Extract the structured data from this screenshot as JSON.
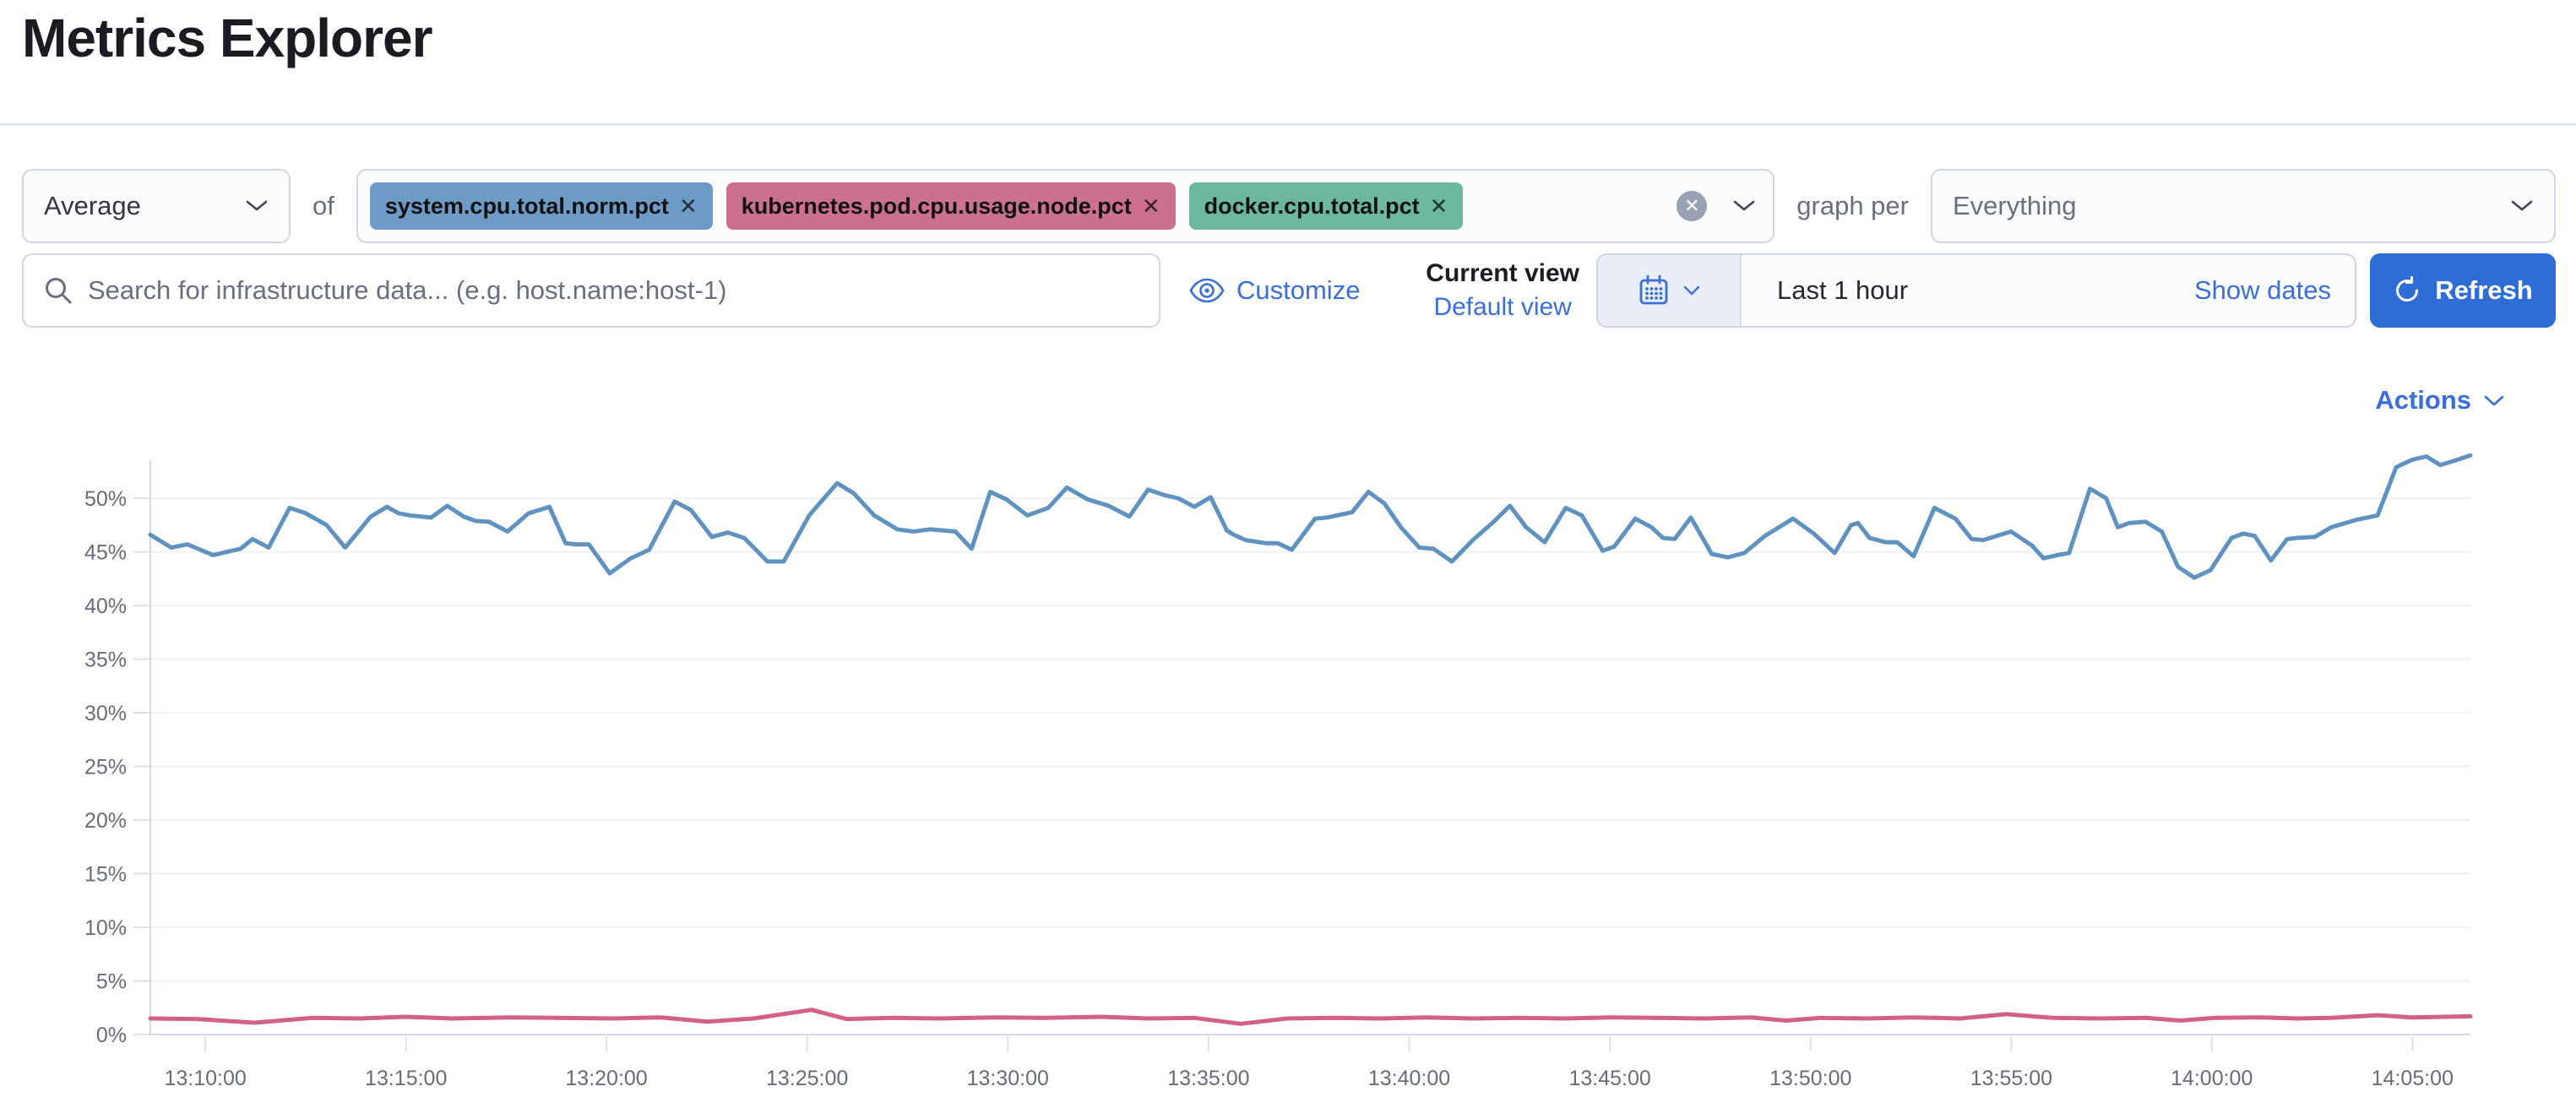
{
  "page": {
    "title": "Metrics Explorer"
  },
  "toolbar": {
    "aggregation": {
      "value": "Average"
    },
    "of_label": "of",
    "metrics": [
      {
        "label": "system.cpu.total.norm.pct",
        "color": "#6d9ac6",
        "close_glyph": "✕"
      },
      {
        "label": "kubernetes.pod.cpu.usage.node.pct",
        "color": "#cc7090",
        "close_glyph": "✕"
      },
      {
        "label": "docker.cpu.total.pct",
        "color": "#6bb89e",
        "close_glyph": "✕"
      }
    ],
    "clear_glyph": "✕",
    "graph_per_label": "graph per",
    "group_by": {
      "value": "Everything"
    }
  },
  "search": {
    "placeholder": "Search for infrastructure data... (e.g. host.name:host-1)"
  },
  "view_controls": {
    "customize_label": "Customize",
    "current_view_label": "Current view",
    "default_view_label": "Default view"
  },
  "time_picker": {
    "value": "Last 1 hour",
    "show_dates_label": "Show dates",
    "refresh_label": "Refresh"
  },
  "actions_label": "Actions",
  "colors": {
    "link_blue": "#3b6fd8",
    "button_blue": "#2e6cd6",
    "border_gray": "#ced6e3",
    "text_dark": "#343741",
    "text_gray": "#69707d",
    "gridline": "#eef1f5",
    "axis_line": "#d3dae6",
    "series_blue": "#6092C0",
    "series_pink": "#D36086"
  },
  "chart_data": {
    "type": "line",
    "title": "",
    "xlabel": "",
    "ylabel": "",
    "ylim": [
      0,
      55
    ],
    "grid": true,
    "legend": "none",
    "y_ticks": [
      0,
      5,
      10,
      15,
      20,
      25,
      30,
      35,
      40,
      45,
      50
    ],
    "y_tick_suffix": "%",
    "x_ticks": [
      {
        "label": "13:10:00",
        "f": 0.0237
      },
      {
        "label": "13:15:00",
        "f": 0.1102
      },
      {
        "label": "13:20:00",
        "f": 0.1966
      },
      {
        "label": "13:25:00",
        "f": 0.2831
      },
      {
        "label": "13:30:00",
        "f": 0.3696
      },
      {
        "label": "13:35:00",
        "f": 0.4561
      },
      {
        "label": "13:40:00",
        "f": 0.5426
      },
      {
        "label": "13:45:00",
        "f": 0.6291
      },
      {
        "label": "13:50:00",
        "f": 0.7156
      },
      {
        "label": "13:55:00",
        "f": 0.8021
      },
      {
        "label": "14:00:00",
        "f": 0.8885
      },
      {
        "label": "14:05:00",
        "f": 0.975
      }
    ],
    "series": [
      {
        "name": "system.cpu.total.norm.pct (Average)",
        "color": "#6092C0",
        "points": [
          [
            0,
            46.6
          ],
          [
            0.009,
            45.4
          ],
          [
            0.016,
            45.7
          ],
          [
            0.027,
            44.7
          ],
          [
            0.039,
            45.3
          ],
          [
            0.044,
            46.2
          ],
          [
            0.051,
            45.4
          ],
          [
            0.06,
            49.1
          ],
          [
            0.067,
            48.6
          ],
          [
            0.076,
            47.5
          ],
          [
            0.084,
            45.4
          ],
          [
            0.095,
            48.3
          ],
          [
            0.102,
            49.2
          ],
          [
            0.107,
            48.6
          ],
          [
            0.112,
            48.4
          ],
          [
            0.121,
            48.2
          ],
          [
            0.128,
            49.3
          ],
          [
            0.135,
            48.3
          ],
          [
            0.14,
            47.9
          ],
          [
            0.146,
            47.8
          ],
          [
            0.154,
            46.9
          ],
          [
            0.163,
            48.6
          ],
          [
            0.172,
            49.2
          ],
          [
            0.179,
            45.8
          ],
          [
            0.184,
            45.7
          ],
          [
            0.189,
            45.7
          ],
          [
            0.198,
            43.0
          ],
          [
            0.207,
            44.4
          ],
          [
            0.215,
            45.2
          ],
          [
            0.226,
            49.7
          ],
          [
            0.233,
            48.9
          ],
          [
            0.242,
            46.4
          ],
          [
            0.249,
            46.8
          ],
          [
            0.256,
            46.3
          ],
          [
            0.266,
            44.1
          ],
          [
            0.273,
            44.1
          ],
          [
            0.284,
            48.4
          ],
          [
            0.296,
            51.4
          ],
          [
            0.303,
            50.5
          ],
          [
            0.312,
            48.4
          ],
          [
            0.322,
            47.1
          ],
          [
            0.329,
            46.9
          ],
          [
            0.336,
            47.1
          ],
          [
            0.347,
            46.9
          ],
          [
            0.354,
            45.3
          ],
          [
            0.362,
            50.6
          ],
          [
            0.369,
            49.9
          ],
          [
            0.378,
            48.4
          ],
          [
            0.387,
            49.1
          ],
          [
            0.395,
            51.0
          ],
          [
            0.404,
            49.9
          ],
          [
            0.413,
            49.3
          ],
          [
            0.422,
            48.3
          ],
          [
            0.43,
            50.8
          ],
          [
            0.437,
            50.3
          ],
          [
            0.443,
            50.0
          ],
          [
            0.45,
            49.2
          ],
          [
            0.457,
            50.1
          ],
          [
            0.464,
            47.0
          ],
          [
            0.467,
            46.6
          ],
          [
            0.472,
            46.1
          ],
          [
            0.481,
            45.8
          ],
          [
            0.486,
            45.8
          ],
          [
            0.492,
            45.2
          ],
          [
            0.502,
            48.1
          ],
          [
            0.507,
            48.2
          ],
          [
            0.518,
            48.7
          ],
          [
            0.525,
            50.6
          ],
          [
            0.532,
            49.5
          ],
          [
            0.539,
            47.3
          ],
          [
            0.547,
            45.4
          ],
          [
            0.553,
            45.3
          ],
          [
            0.561,
            44.1
          ],
          [
            0.57,
            46.1
          ],
          [
            0.579,
            47.8
          ],
          [
            0.586,
            49.3
          ],
          [
            0.593,
            47.3
          ],
          [
            0.601,
            45.9
          ],
          [
            0.61,
            49.1
          ],
          [
            0.617,
            48.4
          ],
          [
            0.626,
            45.1
          ],
          [
            0.631,
            45.5
          ],
          [
            0.64,
            48.1
          ],
          [
            0.647,
            47.3
          ],
          [
            0.652,
            46.3
          ],
          [
            0.657,
            46.2
          ],
          [
            0.664,
            48.2
          ],
          [
            0.673,
            44.8
          ],
          [
            0.68,
            44.5
          ],
          [
            0.687,
            44.9
          ],
          [
            0.696,
            46.5
          ],
          [
            0.708,
            48.1
          ],
          [
            0.717,
            46.7
          ],
          [
            0.726,
            44.9
          ],
          [
            0.733,
            47.5
          ],
          [
            0.736,
            47.7
          ],
          [
            0.741,
            46.3
          ],
          [
            0.748,
            45.9
          ],
          [
            0.753,
            45.9
          ],
          [
            0.76,
            44.6
          ],
          [
            0.769,
            49.1
          ],
          [
            0.778,
            48.1
          ],
          [
            0.785,
            46.2
          ],
          [
            0.79,
            46.1
          ],
          [
            0.799,
            46.7
          ],
          [
            0.802,
            46.9
          ],
          [
            0.811,
            45.6
          ],
          [
            0.816,
            44.4
          ],
          [
            0.822,
            44.7
          ],
          [
            0.827,
            44.9
          ],
          [
            0.836,
            50.9
          ],
          [
            0.843,
            50.0
          ],
          [
            0.848,
            47.3
          ],
          [
            0.853,
            47.7
          ],
          [
            0.86,
            47.8
          ],
          [
            0.867,
            46.9
          ],
          [
            0.874,
            43.6
          ],
          [
            0.881,
            42.6
          ],
          [
            0.888,
            43.3
          ],
          [
            0.897,
            46.3
          ],
          [
            0.902,
            46.7
          ],
          [
            0.907,
            46.5
          ],
          [
            0.914,
            44.2
          ],
          [
            0.921,
            46.2
          ],
          [
            0.925,
            46.3
          ],
          [
            0.933,
            46.4
          ],
          [
            0.94,
            47.3
          ],
          [
            0.951,
            48.0
          ],
          [
            0.96,
            48.4
          ],
          [
            0.968,
            52.9
          ],
          [
            0.975,
            53.6
          ],
          [
            0.981,
            53.9
          ],
          [
            0.987,
            53.1
          ],
          [
            0.993,
            53.5
          ],
          [
            1.0,
            54.0
          ]
        ]
      },
      {
        "name": "kubernetes.pod.cpu.usage.node.pct (Average)",
        "color": "#D36086",
        "points": [
          [
            0,
            1.5
          ],
          [
            0.02,
            1.45
          ],
          [
            0.045,
            1.1
          ],
          [
            0.07,
            1.55
          ],
          [
            0.09,
            1.5
          ],
          [
            0.11,
            1.65
          ],
          [
            0.13,
            1.5
          ],
          [
            0.155,
            1.6
          ],
          [
            0.175,
            1.55
          ],
          [
            0.2,
            1.5
          ],
          [
            0.22,
            1.6
          ],
          [
            0.24,
            1.2
          ],
          [
            0.26,
            1.5
          ],
          [
            0.285,
            2.3
          ],
          [
            0.3,
            1.45
          ],
          [
            0.32,
            1.55
          ],
          [
            0.34,
            1.5
          ],
          [
            0.365,
            1.6
          ],
          [
            0.385,
            1.55
          ],
          [
            0.41,
            1.65
          ],
          [
            0.43,
            1.5
          ],
          [
            0.45,
            1.55
          ],
          [
            0.47,
            1.0
          ],
          [
            0.49,
            1.5
          ],
          [
            0.51,
            1.55
          ],
          [
            0.53,
            1.5
          ],
          [
            0.55,
            1.6
          ],
          [
            0.57,
            1.5
          ],
          [
            0.59,
            1.55
          ],
          [
            0.61,
            1.5
          ],
          [
            0.63,
            1.6
          ],
          [
            0.65,
            1.55
          ],
          [
            0.67,
            1.5
          ],
          [
            0.69,
            1.6
          ],
          [
            0.705,
            1.3
          ],
          [
            0.72,
            1.55
          ],
          [
            0.74,
            1.5
          ],
          [
            0.76,
            1.6
          ],
          [
            0.78,
            1.5
          ],
          [
            0.8,
            1.9
          ],
          [
            0.82,
            1.55
          ],
          [
            0.84,
            1.5
          ],
          [
            0.86,
            1.55
          ],
          [
            0.875,
            1.3
          ],
          [
            0.89,
            1.55
          ],
          [
            0.91,
            1.6
          ],
          [
            0.925,
            1.5
          ],
          [
            0.94,
            1.55
          ],
          [
            0.96,
            1.8
          ],
          [
            0.975,
            1.6
          ],
          [
            1.0,
            1.7
          ]
        ]
      }
    ]
  }
}
